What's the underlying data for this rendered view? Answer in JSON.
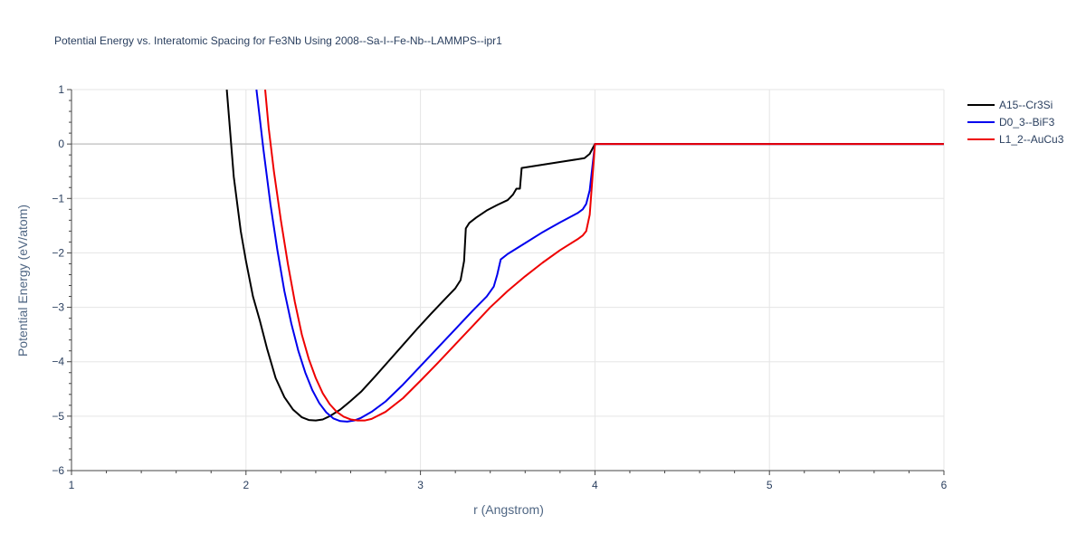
{
  "chart_data": {
    "type": "line",
    "title": "Potential Energy vs. Interatomic Spacing for Fe3Nb Using 2008--Sa-I--Fe-Nb--LAMMPS--ipr1",
    "xlabel": "r (Angstrom)",
    "ylabel": "Potential Energy (eV/atom)",
    "xlim": [
      1,
      6
    ],
    "ylim": [
      -6,
      1
    ],
    "xticks": [
      1,
      2,
      3,
      4,
      5,
      6
    ],
    "yticks": [
      -6,
      -5,
      -4,
      -3,
      -2,
      -1,
      0,
      1
    ],
    "xtick_labels": [
      "1",
      "2",
      "3",
      "4",
      "5",
      "6"
    ],
    "ytick_labels": [
      "−6",
      "−5",
      "−4",
      "−3",
      "−2",
      "−1",
      "0",
      "1"
    ],
    "grid": true,
    "legend_position": "top-right",
    "series": [
      {
        "name": "A15--Cr3Si",
        "color": "#000000",
        "x": [
          1.89,
          1.93,
          1.97,
          2.0,
          2.04,
          2.08,
          2.12,
          2.17,
          2.22,
          2.27,
          2.32,
          2.36,
          2.4,
          2.44,
          2.48,
          2.54,
          2.6,
          2.66,
          2.74,
          2.82,
          2.9,
          2.98,
          3.06,
          3.14,
          3.2,
          3.23,
          3.25,
          3.26,
          3.28,
          3.32,
          3.38,
          3.44,
          3.5,
          3.53,
          3.55,
          3.57,
          3.58,
          3.7,
          3.82,
          3.94,
          3.97,
          4.0,
          4.5,
          5.0,
          5.5,
          6.0
        ],
        "y": [
          1.0,
          -0.6,
          -1.6,
          -2.15,
          -2.8,
          -3.25,
          -3.75,
          -4.3,
          -4.65,
          -4.88,
          -5.02,
          -5.07,
          -5.08,
          -5.06,
          -5.0,
          -4.88,
          -4.72,
          -4.55,
          -4.27,
          -3.98,
          -3.69,
          -3.4,
          -3.12,
          -2.85,
          -2.65,
          -2.5,
          -2.15,
          -1.55,
          -1.45,
          -1.35,
          -1.22,
          -1.12,
          -1.03,
          -0.93,
          -0.82,
          -0.82,
          -0.44,
          -0.38,
          -0.32,
          -0.26,
          -0.18,
          0.0,
          0.0,
          0.0,
          0.0,
          0.0
        ]
      },
      {
        "name": "D0_3--BiF3",
        "color": "#0000ee",
        "x": [
          2.06,
          2.1,
          2.14,
          2.18,
          2.22,
          2.26,
          2.3,
          2.34,
          2.38,
          2.42,
          2.46,
          2.5,
          2.54,
          2.58,
          2.62,
          2.66,
          2.72,
          2.8,
          2.9,
          3.0,
          3.1,
          3.2,
          3.3,
          3.38,
          3.42,
          3.44,
          3.46,
          3.5,
          3.6,
          3.7,
          3.8,
          3.9,
          3.93,
          3.95,
          3.97,
          4.0,
          4.5,
          5.0,
          5.5,
          6.0
        ],
        "y": [
          1.0,
          -0.1,
          -1.1,
          -1.95,
          -2.7,
          -3.3,
          -3.8,
          -4.2,
          -4.52,
          -4.76,
          -4.93,
          -5.04,
          -5.09,
          -5.1,
          -5.08,
          -5.03,
          -4.92,
          -4.73,
          -4.42,
          -4.08,
          -3.74,
          -3.4,
          -3.06,
          -2.8,
          -2.62,
          -2.4,
          -2.12,
          -2.02,
          -1.82,
          -1.62,
          -1.44,
          -1.27,
          -1.2,
          -1.1,
          -0.85,
          0.0,
          0.0,
          0.0,
          0.0,
          0.0
        ]
      },
      {
        "name": "L1_2--AuCu3",
        "color": "#ee0000",
        "x": [
          2.11,
          2.13,
          2.16,
          2.2,
          2.24,
          2.28,
          2.32,
          2.36,
          2.4,
          2.44,
          2.48,
          2.52,
          2.56,
          2.6,
          2.64,
          2.68,
          2.72,
          2.8,
          2.9,
          3.0,
          3.1,
          3.2,
          3.3,
          3.4,
          3.5,
          3.6,
          3.7,
          3.8,
          3.9,
          3.93,
          3.95,
          3.97,
          4.0,
          4.5,
          5.0,
          5.5,
          6.0
        ],
        "y": [
          1.0,
          0.3,
          -0.5,
          -1.4,
          -2.2,
          -2.9,
          -3.5,
          -3.95,
          -4.3,
          -4.58,
          -4.78,
          -4.92,
          -5.01,
          -5.06,
          -5.08,
          -5.08,
          -5.05,
          -4.92,
          -4.67,
          -4.35,
          -4.02,
          -3.68,
          -3.34,
          -3.0,
          -2.7,
          -2.43,
          -2.18,
          -1.95,
          -1.75,
          -1.68,
          -1.6,
          -1.3,
          0.0,
          0.0,
          0.0,
          0.0,
          0.0
        ]
      }
    ]
  }
}
